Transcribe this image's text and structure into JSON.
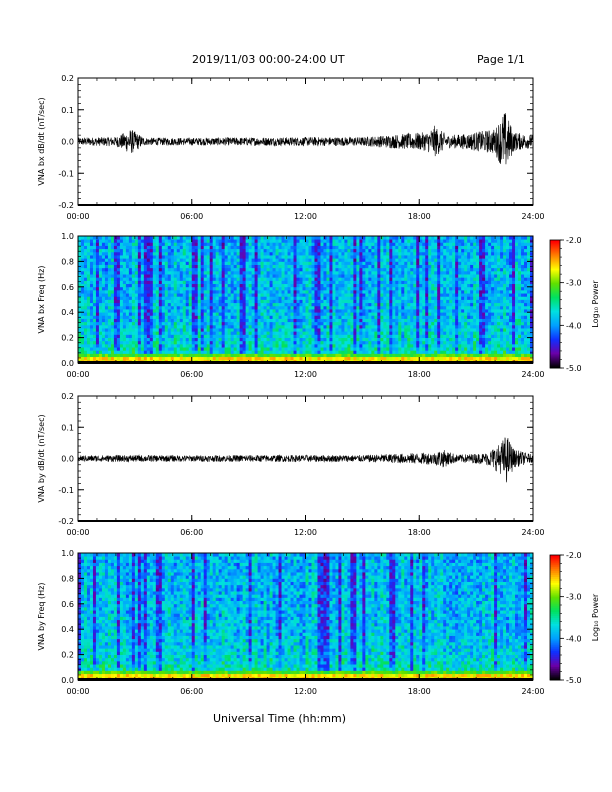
{
  "header": {
    "title": "2019/11/03  00:00-24:00 UT",
    "page": "Page 1/1"
  },
  "xlabel": "Universal Time (hh:mm)",
  "colorbar": {
    "label": "Log₁₀ Power",
    "ticks": [
      "-2.0",
      "-3.0",
      "-4.0",
      "-5.0"
    ],
    "range": [
      -5.0,
      -2.0
    ],
    "colors": [
      "#000000",
      "#6a00a8",
      "#1030ff",
      "#00a0ff",
      "#00e0e0",
      "#00e060",
      "#60e000",
      "#ffff00",
      "#ff8000",
      "#ff0000"
    ]
  },
  "chart_data": [
    {
      "type": "line",
      "ylabel": "VNA bx dB/dt (nT/sec)",
      "ylim": [
        -0.2,
        0.2
      ],
      "yticks": [
        "0.2",
        "0.1",
        "0.0",
        "-0.1",
        "-0.2"
      ],
      "xlim": [
        0,
        24
      ],
      "xticks": [
        "00:00",
        "06:00",
        "12:00",
        "18:00",
        "24:00"
      ],
      "series": [
        {
          "x": [
            0,
            2,
            2.8,
            3.5,
            6,
            9,
            12,
            15,
            18.4,
            18.8,
            19.5,
            20.5,
            22,
            22.5,
            23,
            24
          ],
          "envelope": [
            0.012,
            0.015,
            0.04,
            0.012,
            0.012,
            0.013,
            0.014,
            0.014,
            0.03,
            0.05,
            0.02,
            0.025,
            0.04,
            0.1,
            0.03,
            0.02
          ]
        }
      ]
    },
    {
      "type": "heatmap",
      "ylabel": "VNA bx Freq (Hz)",
      "ylim": [
        0.0,
        1.0
      ],
      "yticks": [
        "1.0",
        "0.8",
        "0.6",
        "0.4",
        "0.2",
        "0.0"
      ],
      "xlim": [
        0,
        24
      ],
      "xticks": [
        "00:00",
        "06:00",
        "12:00",
        "18:00",
        "24:00"
      ],
      "zlim": [
        -5.0,
        -2.0
      ]
    },
    {
      "type": "line",
      "ylabel": "VNA by dB/dt (nT/sec)",
      "ylim": [
        -0.2,
        0.2
      ],
      "yticks": [
        "0.2",
        "0.1",
        "0.0",
        "-0.1",
        "-0.2"
      ],
      "xlim": [
        0,
        24
      ],
      "xticks": [
        "00:00",
        "06:00",
        "12:00",
        "18:00",
        "24:00"
      ],
      "series": [
        {
          "x": [
            0,
            3,
            6,
            9,
            12,
            15,
            18.8,
            19.2,
            20,
            21.5,
            22.3,
            22.6,
            23,
            24
          ],
          "envelope": [
            0.01,
            0.011,
            0.01,
            0.011,
            0.011,
            0.011,
            0.02,
            0.03,
            0.012,
            0.018,
            0.05,
            0.08,
            0.03,
            0.012
          ]
        }
      ]
    },
    {
      "type": "heatmap",
      "ylabel": "VNA by Freq (Hz)",
      "ylim": [
        0.0,
        1.0
      ],
      "yticks": [
        "1.0",
        "0.8",
        "0.6",
        "0.4",
        "0.2",
        "0.0"
      ],
      "xlim": [
        0,
        24
      ],
      "xticks": [
        "00:00",
        "06:00",
        "12:00",
        "18:00",
        "24:00"
      ],
      "zlim": [
        -5.0,
        -2.0
      ]
    }
  ]
}
